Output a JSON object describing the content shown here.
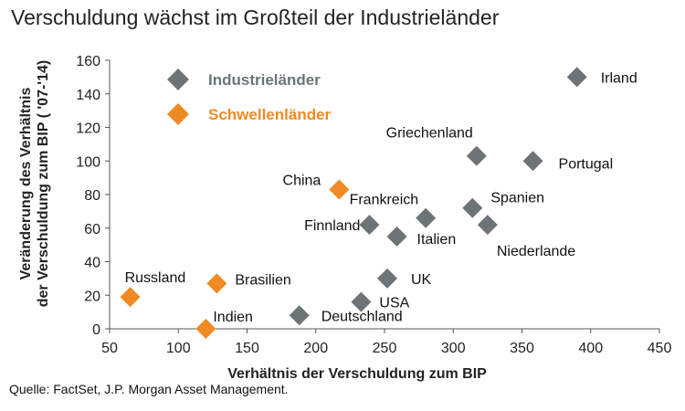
{
  "title": "Verschuldung wächst im Großteil der Industrieländer",
  "source": "Quelle: FactSet, J.P. Morgan Asset Management.",
  "colors": {
    "industrie": "#6d7478",
    "schwellen": "#f08a24"
  },
  "chart_data": {
    "type": "scatter",
    "xlabel": "Verhältnis der Verschuldung zum BIP",
    "ylabel": "Veränderung des Verhältnis der Verschuldung zum BIP ( '07-'14)",
    "xlim": [
      50,
      450
    ],
    "ylim": [
      0,
      160
    ],
    "xticks": [
      50,
      100,
      150,
      200,
      250,
      300,
      350,
      400,
      450
    ],
    "yticks": [
      0,
      20,
      40,
      60,
      80,
      100,
      120,
      140,
      160
    ],
    "legend_position": "top-left",
    "series": [
      {
        "name": "Industrieländer",
        "color": "#6d7478",
        "points": [
          {
            "label": "Irland",
            "x": 390,
            "y": 150
          },
          {
            "label": "Griechenland",
            "x": 317,
            "y": 103
          },
          {
            "label": "Portugal",
            "x": 358,
            "y": 100
          },
          {
            "label": "Spanien",
            "x": 314,
            "y": 72
          },
          {
            "label": "Frankreich",
            "x": 280,
            "y": 66
          },
          {
            "label": "Finnland",
            "x": 239,
            "y": 62
          },
          {
            "label": "Niederlande",
            "x": 325,
            "y": 62
          },
          {
            "label": "Italien",
            "x": 259,
            "y": 55
          },
          {
            "label": "UK",
            "x": 252,
            "y": 30
          },
          {
            "label": "USA",
            "x": 233,
            "y": 16
          },
          {
            "label": "Deutschland",
            "x": 188,
            "y": 8
          }
        ]
      },
      {
        "name": "Schwellenländer",
        "color": "#f08a24",
        "points": [
          {
            "label": "China",
            "x": 217,
            "y": 83
          },
          {
            "label": "Brasilien",
            "x": 128,
            "y": 27
          },
          {
            "label": "Russland",
            "x": 65,
            "y": 19
          },
          {
            "label": "Indien",
            "x": 120,
            "y": 0
          }
        ]
      }
    ]
  }
}
